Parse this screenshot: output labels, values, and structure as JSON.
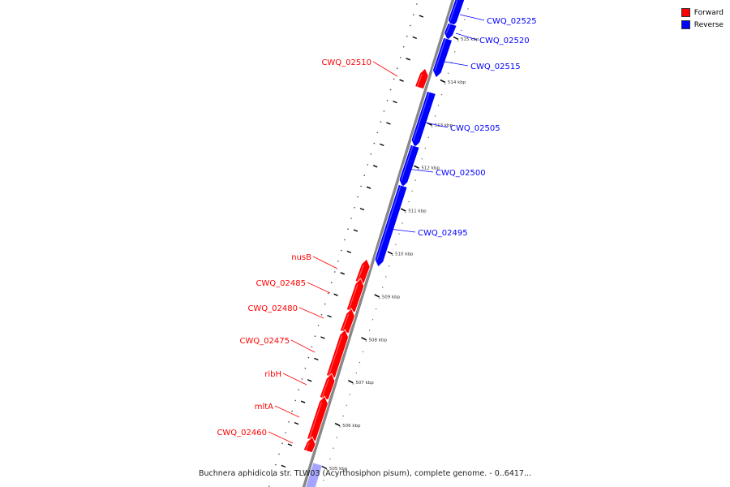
{
  "caption": "Buchnera aphidicola str. TLW03 (Acyrthosiphon pisum), complete genome. - 0..6417...",
  "legend": [
    {
      "label": "Forward",
      "color": "#ff0000"
    },
    {
      "label": "Reverse",
      "color": "#0000ff"
    }
  ],
  "colors": {
    "forward": "#ff0000",
    "reverse": "#0000ff",
    "backbone": "#888888"
  },
  "kbp_labels": [
    "515 kbp",
    "514 kbp",
    "513 kbp",
    "512 kbp",
    "511 kbp",
    "510 kbp",
    "509 kbp",
    "508 kbp",
    "507 kbp",
    "506 kbp",
    "505 kbp"
  ],
  "genes": [
    {
      "name": "CWQ_02525",
      "strand": "reverse"
    },
    {
      "name": "CWQ_02520",
      "strand": "reverse"
    },
    {
      "name": "CWQ_02515",
      "strand": "reverse"
    },
    {
      "name": "CWQ_02510",
      "strand": "forward"
    },
    {
      "name": "CWQ_02505",
      "strand": "reverse"
    },
    {
      "name": "CWQ_02500",
      "strand": "reverse"
    },
    {
      "name": "CWQ_02495",
      "strand": "reverse"
    },
    {
      "name": "nusB",
      "strand": "forward"
    },
    {
      "name": "CWQ_02485",
      "strand": "forward"
    },
    {
      "name": "CWQ_02480",
      "strand": "forward"
    },
    {
      "name": "CWQ_02475",
      "strand": "forward"
    },
    {
      "name": "ribH",
      "strand": "forward"
    },
    {
      "name": "mltA",
      "strand": "forward"
    },
    {
      "name": "CWQ_02460",
      "strand": "forward"
    }
  ]
}
